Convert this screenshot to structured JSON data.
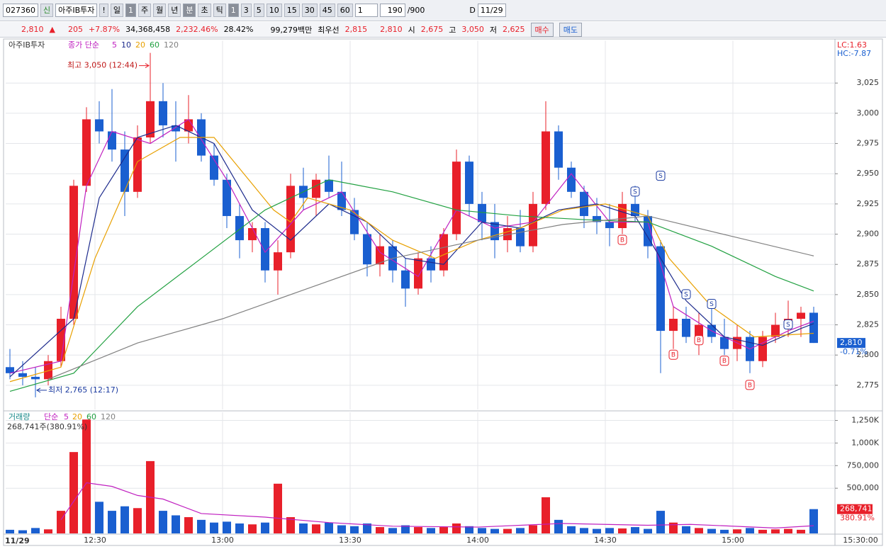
{
  "toolbar": {
    "code": "027360",
    "badge": "신",
    "name": "아주IB투자",
    "alert": "!",
    "period": "일",
    "period_n": "1",
    "periods": [
      "주",
      "월",
      "년",
      "분",
      "초",
      "틱"
    ],
    "intervals": [
      "1",
      "3",
      "5",
      "10",
      "15",
      "30",
      "45",
      "60"
    ],
    "unit": "1",
    "count": "190",
    "max": "/900",
    "d": "D",
    "date": "11/29"
  },
  "quote": {
    "price": "2,810",
    "arrow": "▲",
    "change": "205",
    "rate": "+7.87%",
    "volume": "34,368,458",
    "vol_rate": "2,232.46%",
    "turnover": "28.42%",
    "amount": "99,279백만",
    "best": "최우선",
    "ask": "2,815",
    "bid": "2,810",
    "open_label": "시",
    "open": "2,675",
    "high_label": "고",
    "high": "3,050",
    "low_label": "저",
    "low": "2,625",
    "buy": "매수",
    "sell": "매도"
  },
  "chart_data": [
    {
      "type": "candlestick",
      "name": "아주IB투자",
      "legend_prefix": "종가 단순",
      "up_color": "#e8202a",
      "down_color": "#1a5fd0",
      "x": [
        730,
        733,
        736,
        739,
        742,
        745,
        748,
        751,
        754,
        757,
        760,
        763,
        766,
        769,
        772,
        775,
        778,
        781,
        784,
        787,
        790,
        793,
        796,
        799,
        802,
        805,
        808,
        811,
        814,
        817,
        820,
        823,
        826,
        829,
        832,
        835,
        838,
        841,
        844,
        847,
        850,
        853,
        856,
        859,
        862,
        865,
        868,
        871,
        874,
        877,
        880,
        883,
        886,
        889,
        892,
        895,
        898,
        901,
        904,
        907,
        910,
        913,
        916,
        919
      ],
      "open": [
        2790,
        2785,
        2782,
        2780,
        2795,
        2830,
        2940,
        2995,
        2985,
        2970,
        2935,
        2980,
        3010,
        2990,
        2985,
        2995,
        2965,
        2945,
        2915,
        2895,
        2905,
        2870,
        2885,
        2940,
        2930,
        2945,
        2935,
        2920,
        2900,
        2875,
        2890,
        2870,
        2855,
        2880,
        2870,
        2900,
        2960,
        2925,
        2910,
        2895,
        2905,
        2890,
        2925,
        2985,
        2955,
        2935,
        2915,
        2910,
        2905,
        2925,
        2915,
        2890,
        2820,
        2830,
        2815,
        2825,
        2815,
        2805,
        2815,
        2795,
        2815,
        2825,
        2830,
        2835
      ],
      "high": [
        2805,
        2795,
        2790,
        2800,
        2840,
        2945,
        3005,
        3010,
        3020,
        2985,
        2990,
        3050,
        3025,
        3010,
        3015,
        3000,
        2975,
        2950,
        2925,
        2910,
        2910,
        2895,
        2950,
        2955,
        2950,
        2965,
        2960,
        2930,
        2910,
        2900,
        2895,
        2880,
        2885,
        2890,
        2905,
        2970,
        2965,
        2935,
        2925,
        2915,
        2920,
        2935,
        3010,
        2990,
        2960,
        2940,
        2930,
        2925,
        2935,
        2940,
        2920,
        2895,
        2840,
        2840,
        2835,
        2840,
        2830,
        2825,
        2820,
        2820,
        2835,
        2845,
        2840,
        2840
      ],
      "low": [
        2780,
        2775,
        2765,
        2775,
        2790,
        2825,
        2935,
        2975,
        2960,
        2915,
        2930,
        2975,
        2980,
        2960,
        2975,
        2960,
        2940,
        2905,
        2880,
        2885,
        2860,
        2850,
        2880,
        2920,
        2915,
        2930,
        2915,
        2895,
        2865,
        2865,
        2860,
        2840,
        2850,
        2860,
        2865,
        2895,
        2915,
        2895,
        2880,
        2885,
        2885,
        2885,
        2920,
        2945,
        2930,
        2905,
        2900,
        2890,
        2900,
        2910,
        2880,
        2785,
        2805,
        2810,
        2800,
        2810,
        2800,
        2795,
        2785,
        2790,
        2810,
        2815,
        2815,
        2810
      ],
      "close": [
        2785,
        2782,
        2780,
        2795,
        2830,
        2940,
        2995,
        2985,
        2970,
        2935,
        2980,
        3010,
        2990,
        2985,
        2995,
        2965,
        2945,
        2915,
        2895,
        2905,
        2870,
        2885,
        2940,
        2930,
        2945,
        2935,
        2920,
        2900,
        2875,
        2890,
        2870,
        2855,
        2880,
        2870,
        2900,
        2960,
        2925,
        2910,
        2895,
        2905,
        2890,
        2925,
        2985,
        2955,
        2935,
        2915,
        2910,
        2905,
        2925,
        2915,
        2890,
        2820,
        2830,
        2815,
        2825,
        2815,
        2805,
        2815,
        2795,
        2815,
        2825,
        2830,
        2835,
        2810
      ],
      "series": [
        {
          "name": "5",
          "color": "#c020c0",
          "x": [
            730,
            742,
            748,
            754,
            763,
            772,
            781,
            790,
            799,
            808,
            817,
            826,
            835,
            844,
            853,
            862,
            871,
            880,
            886,
            895,
            904,
            913,
            919
          ],
          "values": [
            2785,
            2795,
            2940,
            2985,
            2975,
            2995,
            2945,
            2885,
            2920,
            2935,
            2885,
            2865,
            2920,
            2905,
            2910,
            2950,
            2910,
            2910,
            2840,
            2820,
            2805,
            2820,
            2828
          ]
        },
        {
          "name": "10",
          "color": "#1c2a8c",
          "x": [
            730,
            745,
            751,
            760,
            769,
            778,
            787,
            796,
            805,
            814,
            823,
            832,
            841,
            850,
            859,
            868,
            877,
            883,
            889,
            898,
            907,
            916,
            919
          ],
          "values": [
            2782,
            2830,
            2930,
            2980,
            2990,
            2975,
            2920,
            2895,
            2925,
            2910,
            2880,
            2875,
            2910,
            2905,
            2920,
            2925,
            2915,
            2880,
            2845,
            2815,
            2808,
            2822,
            2826
          ]
        },
        {
          "name": "20",
          "color": "#e8a000",
          "x": [
            730,
            742,
            750,
            760,
            770,
            778,
            785,
            792,
            796,
            800,
            810,
            820,
            830,
            840,
            850,
            860,
            870,
            880,
            885,
            895,
            905,
            919
          ],
          "values": [
            2778,
            2790,
            2880,
            2960,
            2980,
            2980,
            2950,
            2920,
            2910,
            2930,
            2920,
            2895,
            2880,
            2895,
            2905,
            2920,
            2925,
            2915,
            2880,
            2840,
            2815,
            2818
          ]
        },
        {
          "name": "60",
          "color": "#20a040",
          "x": [
            730,
            745,
            760,
            775,
            790,
            805,
            820,
            835,
            850,
            865,
            880,
            895,
            910,
            919
          ],
          "values": [
            2770,
            2785,
            2840,
            2880,
            2920,
            2945,
            2935,
            2920,
            2915,
            2912,
            2910,
            2890,
            2865,
            2853
          ]
        },
        {
          "name": "120",
          "color": "#808080",
          "x": [
            739,
            760,
            780,
            800,
            820,
            840,
            860,
            880,
            900,
            919
          ],
          "values": [
            2780,
            2810,
            2830,
            2855,
            2880,
            2895,
            2908,
            2915,
            2898,
            2882
          ]
        }
      ],
      "xlim": [
        729,
        924
      ],
      "xticks": [
        {
          "value": 750,
          "label": "12:30"
        },
        {
          "value": 780,
          "label": "13:00"
        },
        {
          "value": 810,
          "label": "13:30"
        },
        {
          "value": 840,
          "label": "14:00"
        },
        {
          "value": 870,
          "label": "14:30"
        },
        {
          "value": 900,
          "label": "15:00"
        },
        {
          "value": 930,
          "label": "15:30:00"
        }
      ],
      "x_start_label": "11/29",
      "ylim": [
        2755,
        3060
      ],
      "yticks": [
        {
          "value": 2775,
          "label": "2,775"
        },
        {
          "value": 2800,
          "label": "2,800"
        },
        {
          "value": 2825,
          "label": "2,825"
        },
        {
          "value": 2850,
          "label": "2,850"
        },
        {
          "value": 2875,
          "label": "2,875"
        },
        {
          "value": 2900,
          "label": "2,900"
        },
        {
          "value": 2925,
          "label": "2,925"
        },
        {
          "value": 2950,
          "label": "2,950"
        },
        {
          "value": 2975,
          "label": "2,975"
        },
        {
          "value": 3000,
          "label": "3,000"
        },
        {
          "value": 3025,
          "label": "3,025"
        }
      ],
      "annotations": [
        {
          "text": "최고 3,050 (12:44)",
          "x": 763,
          "y": 3050,
          "side": "left"
        },
        {
          "text": "최저 2,765 (12:17)",
          "x": 736,
          "y": 2765,
          "side": "right"
        }
      ],
      "signals": [
        {
          "label": "S",
          "x": 877,
          "y": 2935
        },
        {
          "label": "B",
          "x": 874,
          "y": 2895
        },
        {
          "label": "S",
          "x": 883,
          "y": 2948
        },
        {
          "label": "B",
          "x": 886,
          "y": 2800
        },
        {
          "label": "S",
          "x": 889,
          "y": 2850
        },
        {
          "label": "B",
          "x": 892,
          "y": 2812
        },
        {
          "label": "S",
          "x": 895,
          "y": 2842
        },
        {
          "label": "B",
          "x": 898,
          "y": 2795
        },
        {
          "label": "S",
          "x": 913,
          "y": 2825
        },
        {
          "label": "B",
          "x": 904,
          "y": 2775
        }
      ],
      "lc": "LC:1.63",
      "hc": "HC:-7.87",
      "last": {
        "value": 2810,
        "label": "2,810",
        "change": "-0.71%"
      }
    },
    {
      "type": "bar",
      "name": "거래량",
      "legend_prefix": "단순",
      "legend_extra": [
        "20",
        "60",
        "120"
      ],
      "legend_extra_colors": [
        "#e8a000",
        "#20a040",
        "#808080"
      ],
      "x": [
        730,
        733,
        736,
        739,
        742,
        745,
        748,
        751,
        754,
        757,
        760,
        763,
        766,
        769,
        772,
        775,
        778,
        781,
        784,
        787,
        790,
        793,
        796,
        799,
        802,
        805,
        808,
        811,
        814,
        817,
        820,
        823,
        826,
        829,
        832,
        835,
        838,
        841,
        844,
        847,
        850,
        853,
        856,
        859,
        862,
        865,
        868,
        871,
        874,
        877,
        880,
        883,
        886,
        889,
        892,
        895,
        898,
        901,
        904,
        907,
        910,
        913,
        916,
        919
      ],
      "values": [
        40000,
        35000,
        60000,
        45000,
        250000,
        900000,
        1260000,
        350000,
        250000,
        300000,
        280000,
        800000,
        250000,
        200000,
        180000,
        150000,
        120000,
        130000,
        110000,
        100000,
        120000,
        550000,
        180000,
        110000,
        100000,
        120000,
        90000,
        80000,
        110000,
        70000,
        60000,
        90000,
        70000,
        60000,
        70000,
        110000,
        80000,
        60000,
        50000,
        50000,
        60000,
        90000,
        400000,
        150000,
        80000,
        60000,
        50000,
        60000,
        55000,
        70000,
        50000,
        250000,
        120000,
        80000,
        60000,
        50000,
        40000,
        45000,
        60000,
        40000,
        45000,
        50000,
        40000,
        268741
      ],
      "series": [
        {
          "name": "5",
          "color": "#c020c0",
          "x": [
            742,
            748,
            754,
            760,
            766,
            775,
            790,
            805,
            820,
            840,
            860,
            880,
            890,
            910,
            919
          ],
          "values": [
            150000,
            560000,
            520000,
            420000,
            380000,
            220000,
            180000,
            120000,
            80000,
            70000,
            110000,
            90000,
            100000,
            60000,
            85000
          ]
        }
      ],
      "ylim": [
        0,
        1340000
      ],
      "yticks": [
        {
          "value": 500000,
          "label": "500,000"
        },
        {
          "value": 750000,
          "label": "750,000"
        },
        {
          "value": 1000000,
          "label": "1,000K"
        },
        {
          "value": 1250000,
          "label": "1,250K"
        }
      ],
      "info": "268,741주(380.91%)",
      "last": {
        "value": 268741,
        "label": "268,741",
        "change": "380.91%"
      }
    }
  ]
}
